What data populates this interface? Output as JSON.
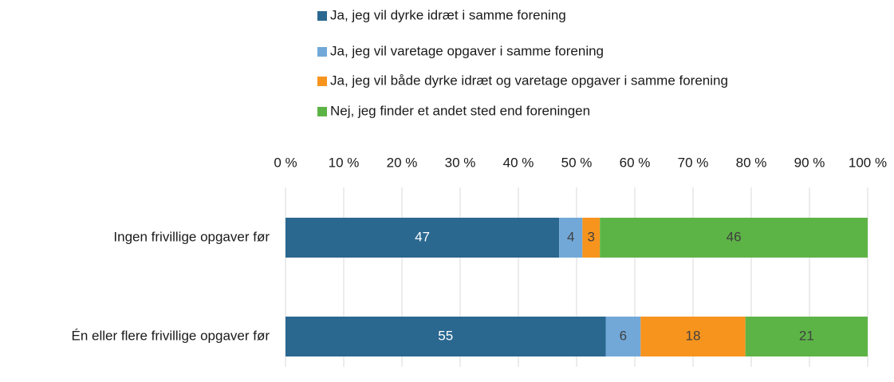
{
  "chart_data": {
    "type": "bar",
    "orientation": "horizontal",
    "stacked": true,
    "categories": [
      "Ingen frivillige opgaver før",
      "Én eller flere frivillige opgaver før"
    ],
    "series": [
      {
        "name": "Ja, jeg vil dyrke idræt i samme forening",
        "color": "#2a6890",
        "values": [
          47,
          55
        ]
      },
      {
        "name": "Ja, jeg vil varetage opgaver i samme forening",
        "color": "#72a8d8",
        "values": [
          4,
          6
        ]
      },
      {
        "name": "Ja, jeg vil både dyrke idræt og varetage opgaver i samme forening",
        "color": "#f7941d",
        "values": [
          3,
          18
        ]
      },
      {
        "name": "Nej, jeg finder et andet sted end foreningen",
        "color": "#5db446",
        "values": [
          46,
          21
        ]
      }
    ],
    "xlim": [
      0,
      100
    ],
    "xticks": [
      {
        "value": 0,
        "label": "0 %"
      },
      {
        "value": 10,
        "label": "10 %"
      },
      {
        "value": 20,
        "label": "20 %"
      },
      {
        "value": 30,
        "label": "30 %"
      },
      {
        "value": 40,
        "label": "40 %"
      },
      {
        "value": 50,
        "label": "50 %"
      },
      {
        "value": 60,
        "label": "60 %"
      },
      {
        "value": 70,
        "label": "70 %"
      },
      {
        "value": 80,
        "label": "80 %"
      },
      {
        "value": 90,
        "label": "90 %"
      },
      {
        "value": 100,
        "label": "100 %"
      }
    ],
    "grid": true,
    "legend": "top"
  }
}
